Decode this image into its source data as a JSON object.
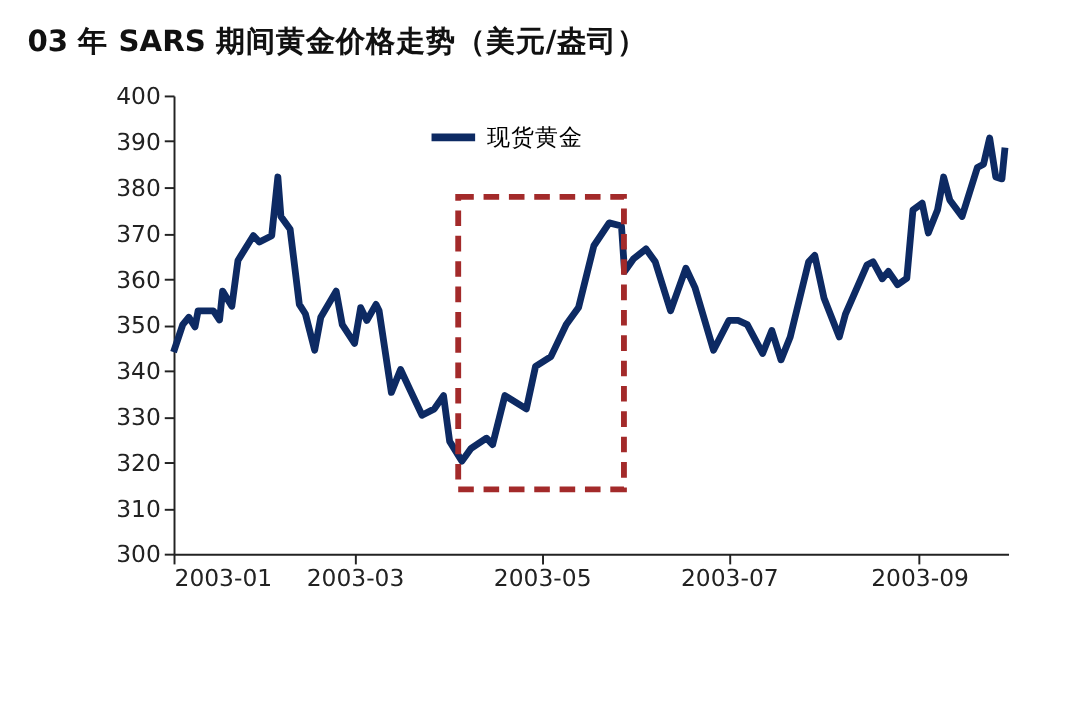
{
  "chart_data": {
    "type": "line",
    "title": "03 年 SARS 期间黄金价格走势（美元/盎司）",
    "x": [
      "2003-01-01",
      "2003-01-04",
      "2003-01-06",
      "2003-01-08",
      "2003-01-09",
      "2003-01-14",
      "2003-01-16",
      "2003-01-17",
      "2003-01-20",
      "2003-01-22",
      "2003-01-27",
      "2003-01-29",
      "2003-02-02",
      "2003-02-04",
      "2003-02-05",
      "2003-02-08",
      "2003-02-11",
      "2003-02-13",
      "2003-02-16",
      "2003-02-18",
      "2003-02-23",
      "2003-02-25",
      "2003-03-01",
      "2003-03-03",
      "2003-03-05",
      "2003-03-08",
      "2003-03-09",
      "2003-03-13",
      "2003-03-16",
      "2003-03-19",
      "2003-03-23",
      "2003-03-27",
      "2003-03-30",
      "2003-04-01",
      "2003-04-05",
      "2003-04-08",
      "2003-04-13",
      "2003-04-15",
      "2003-04-19",
      "2003-04-26",
      "2003-04-29",
      "2003-05-04",
      "2003-05-09",
      "2003-05-13",
      "2003-05-18",
      "2003-05-23",
      "2003-05-27",
      "2003-05-28",
      "2003-05-31",
      "2003-06-04",
      "2003-06-07",
      "2003-06-12",
      "2003-06-17",
      "2003-06-20",
      "2003-06-26",
      "2003-07-01",
      "2003-07-04",
      "2003-07-07",
      "2003-07-12",
      "2003-07-15",
      "2003-07-18",
      "2003-07-21",
      "2003-07-27",
      "2003-07-29",
      "2003-08-01",
      "2003-08-06",
      "2003-08-08",
      "2003-08-15",
      "2003-08-17",
      "2003-08-20",
      "2003-08-22",
      "2003-08-25",
      "2003-08-28",
      "2003-08-30",
      "2003-09-02",
      "2003-09-04",
      "2003-09-07",
      "2003-09-09",
      "2003-09-11",
      "2003-09-15",
      "2003-09-20",
      "2003-09-22",
      "2003-09-24",
      "2003-09-26",
      "2003-09-28",
      "2003-09-29"
    ],
    "series": [
      {
        "name": "现货黄金",
        "color": "#0d2a63",
        "values": [
          344,
          350,
          351.6,
          349.5,
          353,
          353,
          351,
          357.3,
          354,
          364,
          369.4,
          368,
          369.4,
          382.2,
          373.6,
          370.8,
          354.4,
          352.3,
          344.4,
          351.6,
          357.3,
          350,
          345.9,
          353.7,
          350.9,
          354.4,
          353,
          335.2,
          340.2,
          335.9,
          330.2,
          331.6,
          334.5,
          324.5,
          320.2,
          323,
          325.2,
          323.8,
          334.5,
          331.6,
          340.9,
          343,
          350,
          353.7,
          367.2,
          372.2,
          371.5,
          361.6,
          364.4,
          366.5,
          363.7,
          353,
          362.3,
          358,
          344.4,
          350.9,
          350.9,
          350,
          343.7,
          348.7,
          342.3,
          347.3,
          363.7,
          365.1,
          355.8,
          347.3,
          352.3,
          363,
          363.7,
          360,
          361.6,
          358.7,
          360.1,
          375,
          376.5,
          370,
          375,
          382.2,
          377.2,
          373.6,
          384.3,
          385,
          390.7,
          382.2,
          381.8,
          388.6
        ]
      }
    ],
    "xlim": [
      "2003-01-01",
      "2003-09-30"
    ],
    "xticks": [
      "2003-01",
      "2003-03",
      "2003-05",
      "2003-07",
      "2003-09"
    ],
    "ylim": [
      300,
      400
    ],
    "yticks": [
      300,
      310,
      320,
      330,
      340,
      350,
      360,
      370,
      380,
      390,
      400
    ],
    "grid": false,
    "legend": "top",
    "line_style": "solid",
    "marker": "none"
  }
}
